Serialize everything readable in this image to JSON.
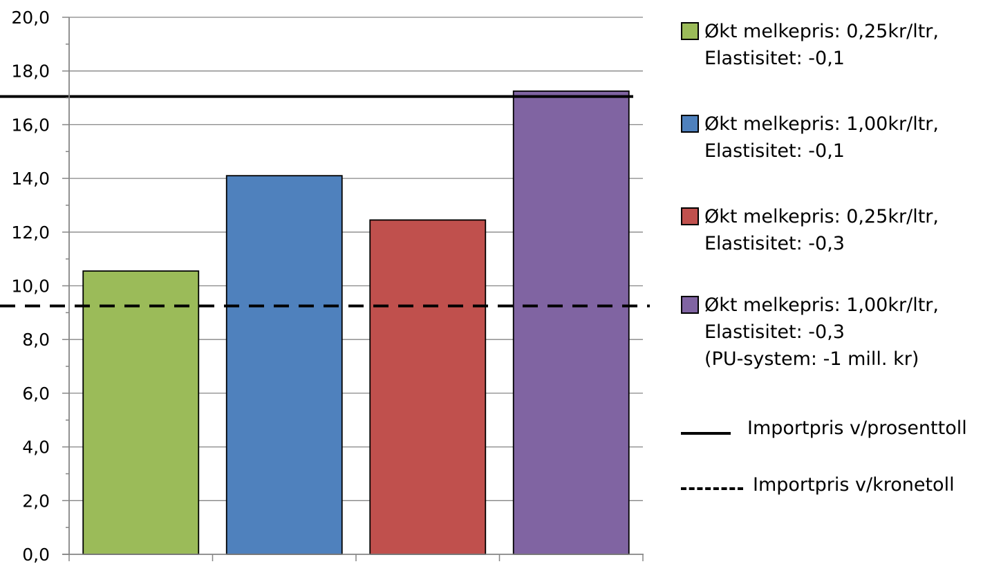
{
  "chart_data": {
    "type": "bar",
    "title": "",
    "xlabel": "",
    "ylabel": "",
    "ylim": [
      0,
      20
    ],
    "ytick_step": 2,
    "ytick_labels": [
      "0,0",
      "2,0",
      "4,0",
      "6,0",
      "8,0",
      "10,0",
      "12,0",
      "14,0",
      "16,0",
      "18,0",
      "20,0"
    ],
    "grid": true,
    "legend_position": "right",
    "series": [
      {
        "name_lines": [
          "Økt melkepris: 0,25kr/ltr,",
          "Elastisitet: -0,1"
        ],
        "value": 10.55,
        "color": "#9BBB59"
      },
      {
        "name_lines": [
          "Økt melkepris: 1,00kr/ltr,",
          "Elastisitet: -0,1"
        ],
        "value": 14.1,
        "color": "#4F81BD"
      },
      {
        "name_lines": [
          "Økt melkepris: 0,25kr/ltr,",
          "Elastisitet: -0,3"
        ],
        "value": 12.45,
        "color": "#C0504D"
      },
      {
        "name_lines": [
          "Økt melkepris: 1,00kr/ltr,",
          "Elastisitet: -0,3",
          "(PU-system: -1 mill. kr)"
        ],
        "value": 17.25,
        "color": "#8064A2"
      }
    ],
    "reference_lines": [
      {
        "name": "Importpris v/prosenttoll",
        "value": 17.05,
        "style": "solid",
        "color": "#000000"
      },
      {
        "name": "Importpris v/kronetoll",
        "value": 9.25,
        "style": "dashed",
        "color": "#000000"
      }
    ]
  }
}
